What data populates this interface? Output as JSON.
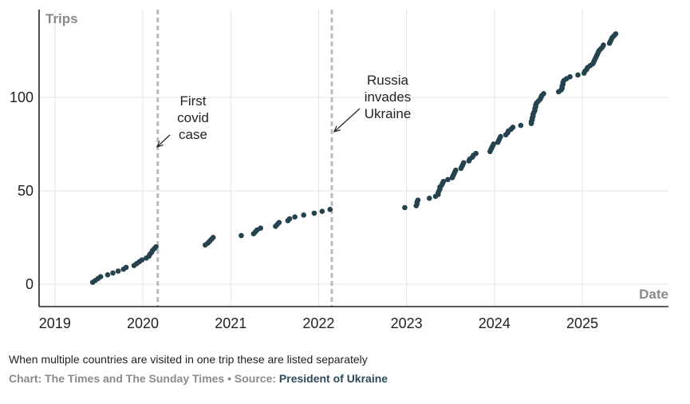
{
  "chart_data": {
    "type": "scatter",
    "ylabel": "Trips",
    "xlabel": "Date",
    "xlim": [
      2018.82,
      2025.98
    ],
    "ylim": [
      -12,
      147
    ],
    "x_ticks": [
      "2019",
      "2020",
      "2021",
      "2022",
      "2023",
      "2024",
      "2025"
    ],
    "y_ticks": [
      "0",
      "50",
      "100"
    ],
    "grid": true,
    "events": [
      {
        "x": 2020.17,
        "label_lines": [
          "First",
          "covid",
          "case"
        ]
      },
      {
        "x": 2022.15,
        "label_lines": [
          "Russia",
          "invades",
          "Ukraine"
        ]
      }
    ],
    "points": [
      [
        2019.43,
        1
      ],
      [
        2019.46,
        2
      ],
      [
        2019.49,
        3
      ],
      [
        2019.52,
        4
      ],
      [
        2019.6,
        5
      ],
      [
        2019.66,
        6
      ],
      [
        2019.72,
        7
      ],
      [
        2019.78,
        8
      ],
      [
        2019.81,
        9
      ],
      [
        2019.9,
        10
      ],
      [
        2019.93,
        11
      ],
      [
        2019.96,
        12
      ],
      [
        2019.99,
        13
      ],
      [
        2020.04,
        14
      ],
      [
        2020.07,
        15
      ],
      [
        2020.08,
        16
      ],
      [
        2020.1,
        17
      ],
      [
        2020.11,
        18
      ],
      [
        2020.13,
        19
      ],
      [
        2020.15,
        20
      ],
      [
        2020.71,
        21
      ],
      [
        2020.74,
        22
      ],
      [
        2020.76,
        23
      ],
      [
        2020.78,
        24
      ],
      [
        2020.8,
        25
      ],
      [
        2021.12,
        26
      ],
      [
        2021.26,
        27
      ],
      [
        2021.28,
        28
      ],
      [
        2021.3,
        29
      ],
      [
        2021.34,
        30
      ],
      [
        2021.51,
        31
      ],
      [
        2021.53,
        32
      ],
      [
        2021.55,
        33
      ],
      [
        2021.65,
        34
      ],
      [
        2021.67,
        35
      ],
      [
        2021.73,
        36
      ],
      [
        2021.83,
        37
      ],
      [
        2021.95,
        38
      ],
      [
        2022.04,
        39
      ],
      [
        2022.13,
        40
      ],
      [
        2022.98,
        41
      ],
      [
        2023.11,
        42
      ],
      [
        2023.12,
        43
      ],
      [
        2023.12,
        44
      ],
      [
        2023.13,
        45
      ],
      [
        2023.26,
        46
      ],
      [
        2023.33,
        47
      ],
      [
        2023.36,
        48
      ],
      [
        2023.36,
        49
      ],
      [
        2023.37,
        50
      ],
      [
        2023.38,
        51
      ],
      [
        2023.38,
        52
      ],
      [
        2023.4,
        53
      ],
      [
        2023.41,
        54
      ],
      [
        2023.42,
        55
      ],
      [
        2023.47,
        56
      ],
      [
        2023.52,
        57
      ],
      [
        2023.53,
        58
      ],
      [
        2023.54,
        59
      ],
      [
        2023.55,
        60
      ],
      [
        2023.56,
        61
      ],
      [
        2023.62,
        62
      ],
      [
        2023.63,
        63
      ],
      [
        2023.64,
        64
      ],
      [
        2023.65,
        65
      ],
      [
        2023.71,
        66
      ],
      [
        2023.72,
        67
      ],
      [
        2023.75,
        68
      ],
      [
        2023.76,
        69
      ],
      [
        2023.79,
        70
      ],
      [
        2023.95,
        71
      ],
      [
        2023.96,
        72
      ],
      [
        2023.97,
        73
      ],
      [
        2023.98,
        74
      ],
      [
        2023.99,
        75
      ],
      [
        2024.04,
        76
      ],
      [
        2024.05,
        77
      ],
      [
        2024.06,
        78
      ],
      [
        2024.07,
        79
      ],
      [
        2024.13,
        80
      ],
      [
        2024.15,
        81
      ],
      [
        2024.16,
        82
      ],
      [
        2024.19,
        83
      ],
      [
        2024.21,
        84
      ],
      [
        2024.3,
        85
      ],
      [
        2024.42,
        86
      ],
      [
        2024.42,
        87
      ],
      [
        2024.43,
        88
      ],
      [
        2024.43,
        89
      ],
      [
        2024.44,
        90
      ],
      [
        2024.44,
        91
      ],
      [
        2024.45,
        92
      ],
      [
        2024.46,
        93
      ],
      [
        2024.46,
        94
      ],
      [
        2024.47,
        95
      ],
      [
        2024.47,
        96
      ],
      [
        2024.48,
        97
      ],
      [
        2024.5,
        98
      ],
      [
        2024.52,
        99
      ],
      [
        2024.53,
        100
      ],
      [
        2024.54,
        101
      ],
      [
        2024.56,
        102
      ],
      [
        2024.73,
        103
      ],
      [
        2024.76,
        104
      ],
      [
        2024.77,
        105
      ],
      [
        2024.77,
        106
      ],
      [
        2024.78,
        107
      ],
      [
        2024.78,
        108
      ],
      [
        2024.79,
        109
      ],
      [
        2024.82,
        110
      ],
      [
        2024.86,
        111
      ],
      [
        2024.95,
        112
      ],
      [
        2025.02,
        113
      ],
      [
        2025.03,
        114
      ],
      [
        2025.05,
        115
      ],
      [
        2025.06,
        116
      ],
      [
        2025.09,
        117
      ],
      [
        2025.12,
        118
      ],
      [
        2025.13,
        119
      ],
      [
        2025.14,
        120
      ],
      [
        2025.15,
        121
      ],
      [
        2025.16,
        122
      ],
      [
        2025.17,
        123
      ],
      [
        2025.18,
        124
      ],
      [
        2025.19,
        125
      ],
      [
        2025.21,
        126
      ],
      [
        2025.23,
        127
      ],
      [
        2025.24,
        128
      ],
      [
        2025.31,
        129
      ],
      [
        2025.32,
        130
      ],
      [
        2025.33,
        131
      ],
      [
        2025.34,
        132
      ],
      [
        2025.36,
        133
      ],
      [
        2025.38,
        134
      ]
    ]
  },
  "footer": {
    "note": "When multiple countries are visited in one trip these are listed separately",
    "credit_prefix": "Chart: The Times and The Sunday Times • Source: ",
    "source_name": "President of Ukraine"
  }
}
